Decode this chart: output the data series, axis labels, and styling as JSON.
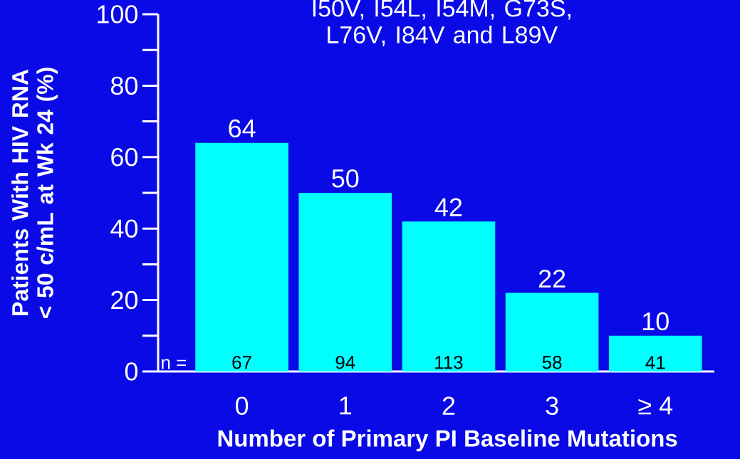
{
  "chart_data": {
    "type": "bar",
    "title": "I50V, I54L, I54M, G73S, L76V, I84V and L89V",
    "xlabel": "Number of Primary PI Baseline Mutations",
    "ylabel": "Patients With HIV RNA < 50 c/mL at Wk 24 (%)",
    "categories": [
      "0",
      "1",
      "2",
      "3",
      "≥ 4"
    ],
    "values": [
      64,
      50,
      42,
      22,
      10
    ],
    "color": "#00ffff",
    "data_labels": true,
    "ylim": [
      0,
      100
    ],
    "yticks": [
      0,
      20,
      40,
      60,
      80,
      100
    ],
    "annotations": [
      "n =",
      "67",
      "94",
      "113",
      "58",
      "41"
    ]
  }
}
